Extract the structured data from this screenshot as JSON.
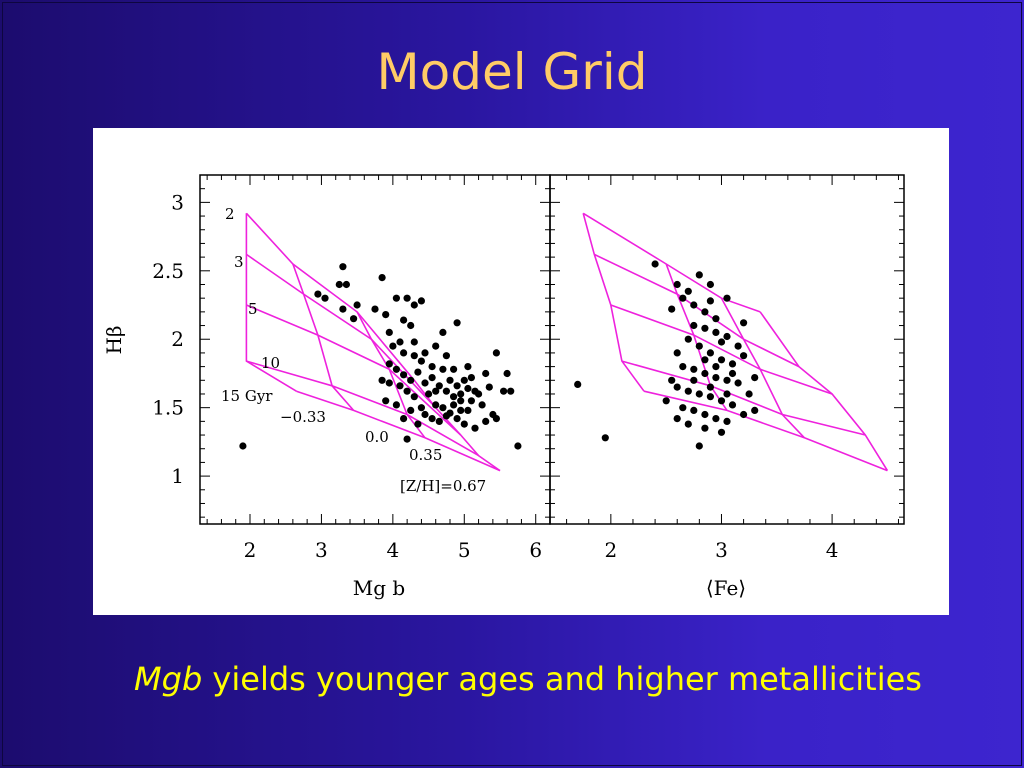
{
  "slide": {
    "title": "Model Grid",
    "caption_italic": "Mgb",
    "caption_rest": " yields younger ages and higher metallicities"
  },
  "colors": {
    "title": "#ffcc66",
    "caption": "#ffff00",
    "grid_lines": "#ee22dd",
    "points": "#000000",
    "background_left": "#1c0c6e",
    "background_right": "#3d25cf"
  },
  "chart_data": [
    {
      "type": "scatter",
      "xlabel": "Mg b",
      "ylabel": "Hβ",
      "xlim": [
        1.3,
        6.2
      ],
      "ylim": [
        0.65,
        3.2
      ],
      "xticks": [
        2,
        3,
        4,
        5,
        6
      ],
      "yticks": [
        1,
        1.5,
        2,
        2.5,
        3
      ],
      "age_labels": [
        "2",
        "3",
        "5",
        "10",
        "15 Gyr"
      ],
      "metallicity_labels": [
        "−0.33",
        "0.0",
        "0.35",
        "[Z/H]=0.67"
      ],
      "model_grid": {
        "ages_gyr": [
          2,
          3,
          5,
          10,
          15
        ],
        "metallicities": [
          -0.33,
          0.0,
          0.35,
          0.67
        ],
        "nodes": [
          [
            [
              1.95,
              2.92
            ],
            [
              2.6,
              2.55
            ],
            [
              3.5,
              2.2
            ],
            [
              4.3,
              1.7
            ]
          ],
          [
            [
              1.95,
              2.62
            ],
            [
              2.75,
              2.33
            ],
            [
              3.7,
              2.0
            ],
            [
              4.6,
              1.5
            ]
          ],
          [
            [
              1.95,
              2.25
            ],
            [
              2.95,
              2.03
            ],
            [
              3.95,
              1.78
            ],
            [
              4.95,
              1.3
            ]
          ],
          [
            [
              1.95,
              1.84
            ],
            [
              3.15,
              1.66
            ],
            [
              4.2,
              1.45
            ],
            [
              5.2,
              1.15
            ]
          ],
          [
            [
              2.65,
              1.62
            ],
            [
              3.45,
              1.48
            ],
            [
              4.45,
              1.28
            ],
            [
              5.5,
              1.04
            ]
          ]
        ]
      },
      "points": [
        [
          1.9,
          1.22
        ],
        [
          4.2,
          1.27
        ],
        [
          2.95,
          2.33
        ],
        [
          3.05,
          2.3
        ],
        [
          3.3,
          2.53
        ],
        [
          3.25,
          2.4
        ],
        [
          3.35,
          2.4
        ],
        [
          3.3,
          2.22
        ],
        [
          3.45,
          2.15
        ],
        [
          3.5,
          2.25
        ],
        [
          3.85,
          2.45
        ],
        [
          3.75,
          2.22
        ],
        [
          3.9,
          2.18
        ],
        [
          4.05,
          2.3
        ],
        [
          4.2,
          2.3
        ],
        [
          4.3,
          2.25
        ],
        [
          4.4,
          2.28
        ],
        [
          4.15,
          2.14
        ],
        [
          4.25,
          2.1
        ],
        [
          3.95,
          2.05
        ],
        [
          4.0,
          1.95
        ],
        [
          4.1,
          1.98
        ],
        [
          4.3,
          1.98
        ],
        [
          4.45,
          1.9
        ],
        [
          4.6,
          1.95
        ],
        [
          4.7,
          2.05
        ],
        [
          4.9,
          2.12
        ],
        [
          4.75,
          1.88
        ],
        [
          4.85,
          1.78
        ],
        [
          5.05,
          1.8
        ],
        [
          5.3,
          1.75
        ],
        [
          5.45,
          1.9
        ],
        [
          5.6,
          1.75
        ],
        [
          5.55,
          1.62
        ],
        [
          5.35,
          1.65
        ],
        [
          5.15,
          1.62
        ],
        [
          5.0,
          1.7
        ],
        [
          4.95,
          1.6
        ],
        [
          5.1,
          1.55
        ],
        [
          5.25,
          1.52
        ],
        [
          5.4,
          1.45
        ],
        [
          5.3,
          1.4
        ],
        [
          5.45,
          1.42
        ],
        [
          5.65,
          1.62
        ],
        [
          5.75,
          1.22
        ],
        [
          3.95,
          1.82
        ],
        [
          4.05,
          1.78
        ],
        [
          4.15,
          1.74
        ],
        [
          4.25,
          1.7
        ],
        [
          4.35,
          1.76
        ],
        [
          4.45,
          1.68
        ],
        [
          4.55,
          1.72
        ],
        [
          4.65,
          1.66
        ],
        [
          4.75,
          1.62
        ],
        [
          4.85,
          1.58
        ],
        [
          4.95,
          1.55
        ],
        [
          5.05,
          1.48
        ],
        [
          4.5,
          1.6
        ],
        [
          4.6,
          1.52
        ],
        [
          4.7,
          1.5
        ],
        [
          4.8,
          1.46
        ],
        [
          4.9,
          1.42
        ],
        [
          5.0,
          1.38
        ],
        [
          5.15,
          1.35
        ],
        [
          4.55,
          1.42
        ],
        [
          4.65,
          1.4
        ],
        [
          4.75,
          1.44
        ],
        [
          4.4,
          1.5
        ],
        [
          4.3,
          1.58
        ],
        [
          4.2,
          1.62
        ],
        [
          4.1,
          1.66
        ],
        [
          3.95,
          1.68
        ],
        [
          3.9,
          1.55
        ],
        [
          4.05,
          1.52
        ],
        [
          4.25,
          1.48
        ],
        [
          4.15,
          1.42
        ],
        [
          4.35,
          1.38
        ],
        [
          4.45,
          1.45
        ],
        [
          4.6,
          1.62
        ],
        [
          4.8,
          1.7
        ],
        [
          4.9,
          1.66
        ],
        [
          5.05,
          1.64
        ],
        [
          5.2,
          1.6
        ],
        [
          4.7,
          1.78
        ],
        [
          4.55,
          1.8
        ],
        [
          4.4,
          1.84
        ],
        [
          4.3,
          1.88
        ],
        [
          4.15,
          1.9
        ],
        [
          3.85,
          1.7
        ],
        [
          5.1,
          1.72
        ],
        [
          4.85,
          1.52
        ],
        [
          4.95,
          1.48
        ]
      ]
    },
    {
      "type": "scatter",
      "xlabel": "⟨Fe⟩",
      "xlim": [
        1.45,
        4.65
      ],
      "ylim": [
        0.65,
        3.2
      ],
      "xticks": [
        2,
        3,
        4
      ],
      "model_grid": {
        "ages_gyr": [
          2,
          3,
          5,
          10,
          15
        ],
        "metallicities": [
          -0.33,
          0.0,
          0.35,
          0.67
        ],
        "nodes": [
          [
            [
              1.75,
              2.92
            ],
            [
              2.5,
              2.55
            ],
            [
              3.0,
              2.3
            ],
            [
              3.35,
              2.2
            ]
          ],
          [
            [
              1.85,
              2.62
            ],
            [
              2.6,
              2.33
            ],
            [
              3.2,
              2.0
            ],
            [
              3.7,
              1.8
            ]
          ],
          [
            [
              2.0,
              2.25
            ],
            [
              2.75,
              2.03
            ],
            [
              3.35,
              1.78
            ],
            [
              4.0,
              1.6
            ]
          ],
          [
            [
              2.1,
              1.84
            ],
            [
              2.9,
              1.66
            ],
            [
              3.55,
              1.45
            ],
            [
              4.3,
              1.3
            ]
          ],
          [
            [
              2.3,
              1.62
            ],
            [
              3.05,
              1.48
            ],
            [
              3.75,
              1.28
            ],
            [
              4.5,
              1.04
            ]
          ]
        ]
      },
      "points": [
        [
          1.7,
          1.67
        ],
        [
          1.95,
          1.28
        ],
        [
          2.4,
          2.55
        ],
        [
          2.8,
          2.47
        ],
        [
          2.6,
          2.4
        ],
        [
          2.7,
          2.35
        ],
        [
          2.9,
          2.4
        ],
        [
          3.05,
          2.3
        ],
        [
          2.65,
          2.3
        ],
        [
          2.75,
          2.25
        ],
        [
          2.55,
          2.22
        ],
        [
          2.85,
          2.2
        ],
        [
          2.95,
          2.15
        ],
        [
          2.75,
          2.1
        ],
        [
          2.85,
          2.08
        ],
        [
          2.95,
          2.05
        ],
        [
          3.05,
          2.02
        ],
        [
          3.15,
          1.95
        ],
        [
          2.7,
          2.0
        ],
        [
          2.8,
          1.95
        ],
        [
          2.9,
          1.9
        ],
        [
          3.0,
          1.85
        ],
        [
          3.1,
          1.82
        ],
        [
          2.65,
          1.8
        ],
        [
          2.75,
          1.78
        ],
        [
          2.85,
          1.75
        ],
        [
          2.95,
          1.72
        ],
        [
          3.05,
          1.7
        ],
        [
          3.15,
          1.68
        ],
        [
          2.55,
          1.7
        ],
        [
          2.6,
          1.65
        ],
        [
          2.7,
          1.62
        ],
        [
          2.8,
          1.6
        ],
        [
          2.9,
          1.58
        ],
        [
          3.0,
          1.55
        ],
        [
          3.1,
          1.52
        ],
        [
          2.65,
          1.5
        ],
        [
          2.75,
          1.48
        ],
        [
          2.85,
          1.45
        ],
        [
          2.95,
          1.42
        ],
        [
          3.05,
          1.4
        ],
        [
          3.2,
          1.45
        ],
        [
          3.3,
          1.48
        ],
        [
          2.7,
          1.38
        ],
        [
          2.85,
          1.35
        ],
        [
          3.0,
          1.32
        ],
        [
          2.8,
          1.22
        ],
        [
          2.6,
          1.42
        ],
        [
          2.5,
          1.55
        ],
        [
          3.3,
          1.72
        ],
        [
          3.25,
          1.6
        ],
        [
          3.2,
          1.88
        ],
        [
          2.9,
          1.65
        ],
        [
          2.95,
          1.8
        ],
        [
          2.85,
          1.85
        ],
        [
          3.05,
          1.6
        ],
        [
          3.1,
          1.75
        ],
        [
          2.75,
          1.7
        ],
        [
          2.6,
          1.9
        ],
        [
          3.0,
          1.98
        ],
        [
          2.9,
          2.28
        ],
        [
          3.2,
          2.12
        ]
      ]
    }
  ]
}
